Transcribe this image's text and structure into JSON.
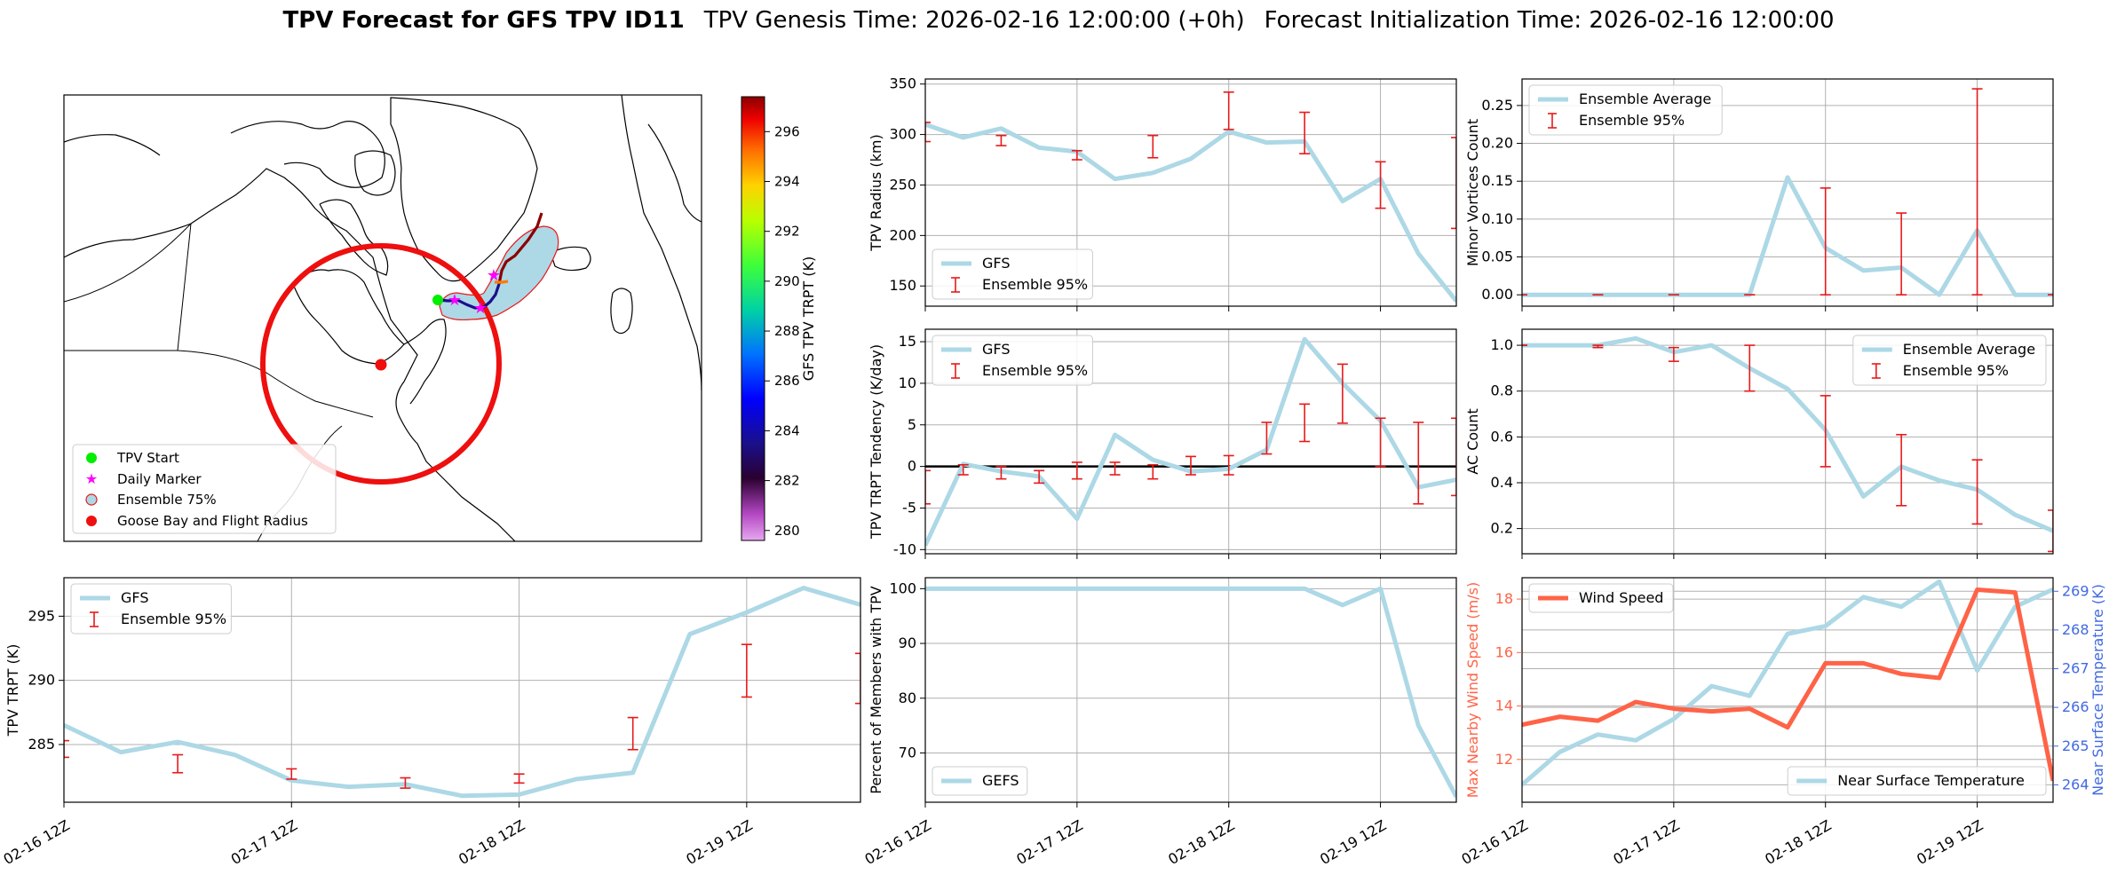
{
  "title": {
    "bold": "TPV Forecast for GFS TPV ID11",
    "genesis": "TPV Genesis Time: 2026-02-16 12:00:00 (+0h)",
    "init": "Forecast Initialization Time: 2026-02-16 12:00:00"
  },
  "colors": {
    "gfs": "#add8e6",
    "ens": "#e8191a",
    "wind": "#ff6347",
    "temp": "#4169e1",
    "grid": "#b0b0b0"
  },
  "map": {
    "legend": [
      "TPV Start",
      "Daily Marker",
      "Ensemble 75%",
      "Goose Bay and Flight Radius"
    ],
    "colorbar": {
      "label": "GFS TPV TRPT (K)",
      "min": 279.6,
      "max": 297.4,
      "ticks": [
        280,
        282,
        284,
        286,
        288,
        290,
        292,
        294,
        296
      ]
    }
  },
  "chart_data": [
    {
      "id": "trpt",
      "type": "line",
      "ylabel": "TPV TRPT (K)",
      "xlabels": [
        "02-16 12Z",
        "02-17 12Z",
        "02-18 12Z",
        "02-19 12Z"
      ],
      "xticks": [
        0,
        4,
        8,
        12
      ],
      "xlim": [
        0,
        14
      ],
      "ylim": [
        280.5,
        298
      ],
      "yticks": [
        285,
        290,
        295
      ],
      "series": [
        {
          "name": "GFS",
          "x": [
            0,
            1,
            2,
            3,
            4,
            5,
            6,
            7,
            8,
            9,
            10,
            11,
            12,
            13,
            14
          ],
          "values": [
            286.5,
            284.4,
            285.2,
            284.2,
            282.2,
            281.7,
            281.9,
            281.0,
            281.1,
            282.3,
            282.8,
            293.6,
            295.3,
            297.2,
            295.9
          ]
        }
      ],
      "errorbars": {
        "name": "Ensemble 95%",
        "x": [
          0,
          2,
          4,
          6,
          8,
          10,
          12,
          14
        ],
        "lo": [
          284,
          282.8,
          282.3,
          281.6,
          282,
          284.6,
          288.7,
          288.2
        ],
        "hi": [
          285.3,
          284.2,
          283.1,
          282.4,
          282.7,
          287.1,
          292.8,
          292.1
        ]
      },
      "legend": [
        "GFS",
        "Ensemble 95%"
      ]
    },
    {
      "id": "radius",
      "type": "line",
      "ylabel": "TPV Radius (km)",
      "xlabels": [],
      "xticks": [
        0,
        4,
        8,
        12
      ],
      "xlim": [
        0,
        14
      ],
      "ylim": [
        130,
        355
      ],
      "yticks": [
        150,
        200,
        250,
        300,
        350
      ],
      "series": [
        {
          "name": "GFS",
          "x": [
            0,
            1,
            2,
            3,
            4,
            5,
            6,
            7,
            8,
            9,
            10,
            11,
            12,
            13,
            14
          ],
          "values": [
            310,
            297,
            306,
            287,
            283,
            256,
            262,
            276,
            303,
            292,
            293,
            234,
            256,
            182,
            135
          ]
        }
      ],
      "errorbars": {
        "name": "Ensemble 95%",
        "x": [
          0,
          2,
          4,
          6,
          8,
          10,
          12,
          14
        ],
        "lo": [
          293,
          289,
          275,
          277,
          305,
          281,
          227,
          207
        ],
        "hi": [
          312,
          299,
          284,
          299,
          342,
          322,
          273,
          297
        ]
      },
      "legend": [
        "GFS",
        "Ensemble 95%"
      ]
    },
    {
      "id": "tendency",
      "type": "line",
      "ylabel": "TPV TRPT Tendency (K/day)",
      "xlabels": [],
      "xticks": [
        0,
        4,
        8,
        12
      ],
      "xlim": [
        0,
        14
      ],
      "ylim": [
        -10.5,
        16.5
      ],
      "yticks": [
        -10,
        -5,
        0,
        5,
        10,
        15
      ],
      "zeroline": true,
      "series": [
        {
          "name": "GFS",
          "x": [
            0,
            1,
            2,
            3,
            4,
            5,
            6,
            7,
            8,
            9,
            10,
            11,
            12,
            13,
            14
          ],
          "values": [
            -9.5,
            0.3,
            -0.6,
            -1.2,
            -6.3,
            3.8,
            0.8,
            -0.6,
            -0.3,
            2.0,
            15.3,
            10.0,
            5.5,
            -2.5,
            -1.6
          ]
        }
      ],
      "errorbars": {
        "name": "Ensemble 95%",
        "x": [
          0,
          1,
          2,
          3,
          4,
          5,
          6,
          7,
          8,
          9,
          10,
          11,
          12,
          13,
          14
        ],
        "lo": [
          -4.5,
          -1,
          -1.5,
          -2,
          -1.5,
          -1,
          -1.5,
          -1,
          -1,
          1.5,
          3,
          5.2,
          0,
          -4.5,
          -3.5
        ],
        "hi": [
          -0.5,
          0.2,
          0,
          -0.5,
          0.5,
          0.5,
          0.2,
          1.2,
          1.3,
          5.3,
          7.5,
          12.3,
          5.8,
          5.3,
          5.8
        ]
      },
      "legend": [
        "GFS",
        "Ensemble 95%"
      ]
    },
    {
      "id": "percent",
      "type": "line",
      "ylabel": "Percent of Members with TPV",
      "xlabels": [
        "02-16 12Z",
        "02-17 12Z",
        "02-18 12Z",
        "02-19 12Z"
      ],
      "xticks": [
        0,
        4,
        8,
        12
      ],
      "xlim": [
        0,
        14
      ],
      "ylim": [
        61,
        102
      ],
      "yticks": [
        70,
        80,
        90,
        100
      ],
      "series": [
        {
          "name": "GEFS",
          "x": [
            0,
            1,
            2,
            3,
            4,
            5,
            6,
            7,
            8,
            9,
            10,
            11,
            12,
            13,
            14
          ],
          "values": [
            100,
            100,
            100,
            100,
            100,
            100,
            100,
            100,
            100,
            100,
            100,
            97,
            100,
            75,
            62
          ]
        }
      ],
      "legend": [
        "GEFS"
      ]
    },
    {
      "id": "minor",
      "type": "line",
      "ylabel": "Minor Vortices Count",
      "xlabels": [],
      "xticks": [
        0,
        4,
        8,
        12
      ],
      "xlim": [
        0,
        14
      ],
      "ylim": [
        -0.015,
        0.285
      ],
      "yticks": [
        0.0,
        0.05,
        0.1,
        0.15,
        0.2,
        0.25
      ],
      "ydecimals": 2,
      "series": [
        {
          "name": "Ensemble Average",
          "x": [
            0,
            1,
            2,
            3,
            4,
            5,
            6,
            7,
            8,
            9,
            10,
            11,
            12,
            13,
            14
          ],
          "values": [
            0,
            0,
            0,
            0,
            0,
            0,
            0,
            0.155,
            0.062,
            0.032,
            0.036,
            0,
            0.085,
            0,
            0
          ]
        }
      ],
      "errorbars": {
        "name": "Ensemble 95%",
        "x": [
          0,
          2,
          4,
          6,
          8,
          10,
          12,
          14
        ],
        "lo": [
          0,
          0,
          0,
          0,
          0,
          0,
          0,
          0
        ],
        "hi": [
          0,
          0,
          0,
          0,
          0.141,
          0.108,
          0.272,
          0
        ]
      },
      "legend": [
        "Ensemble Average",
        "Ensemble 95%"
      ]
    },
    {
      "id": "ac",
      "type": "line",
      "ylabel": "AC Count",
      "xlabels": [],
      "xticks": [
        0,
        4,
        8,
        12
      ],
      "xlim": [
        0,
        14
      ],
      "ylim": [
        0.09,
        1.07
      ],
      "yticks": [
        0.2,
        0.4,
        0.6,
        0.8,
        1.0
      ],
      "ydecimals": 1,
      "series": [
        {
          "name": "Ensemble Average",
          "x": [
            0,
            1,
            2,
            3,
            4,
            5,
            6,
            7,
            8,
            9,
            10,
            11,
            12,
            13,
            14
          ],
          "values": [
            1,
            1,
            1,
            1.03,
            0.97,
            1,
            0.9,
            0.81,
            0.63,
            0.34,
            0.47,
            0.41,
            0.37,
            0.26,
            0.19
          ]
        }
      ],
      "errorbars": {
        "name": "Ensemble 95%",
        "x": [
          0,
          2,
          4,
          6,
          8,
          10,
          12,
          14
        ],
        "lo": [
          1,
          0.99,
          0.93,
          0.8,
          0.47,
          0.3,
          0.22,
          0.1
        ],
        "hi": [
          1,
          1,
          0.99,
          1,
          0.78,
          0.61,
          0.5,
          0.28
        ]
      },
      "legend": [
        "Ensemble Average",
        "Ensemble 95%"
      ]
    },
    {
      "id": "wind",
      "type": "line",
      "ylabel": "Max Nearby Wind Speed (m/s)",
      "y2label": "Near Surface Temperature (K)",
      "xlabels": [
        "02-16 12Z",
        "02-17 12Z",
        "02-18 12Z",
        "02-19 12Z"
      ],
      "xticks": [
        0,
        4,
        8,
        12
      ],
      "xlim": [
        0,
        14
      ],
      "ylim": [
        10.4,
        18.8
      ],
      "yticks": [
        12,
        14,
        16,
        18
      ],
      "y2lim": [
        263.55,
        269.35
      ],
      "y2ticks": [
        264,
        265,
        266,
        267,
        268,
        269
      ],
      "series": [
        {
          "name": "Wind Speed",
          "x": [
            0,
            1,
            2,
            3,
            4,
            5,
            6,
            7,
            8,
            9,
            10,
            11,
            12,
            13,
            14
          ],
          "values": [
            13.3,
            13.6,
            13.45,
            14.15,
            13.9,
            13.8,
            13.9,
            13.2,
            15.6,
            15.6,
            15.2,
            15.05,
            18.35,
            18.25,
            11.2
          ]
        }
      ],
      "series2": [
        {
          "name": "Near Surface Temperature",
          "x": [
            0,
            1,
            2,
            3,
            4,
            5,
            6,
            7,
            8,
            9,
            10,
            11,
            12,
            13,
            14
          ],
          "values": [
            264.0,
            264.85,
            265.3,
            265.15,
            265.7,
            266.55,
            266.3,
            267.9,
            268.1,
            268.85,
            268.6,
            269.25,
            266.95,
            268.6,
            269.05
          ]
        }
      ],
      "legend": [
        "Wind Speed"
      ],
      "legend2": [
        "Near Surface Temperature"
      ]
    }
  ]
}
